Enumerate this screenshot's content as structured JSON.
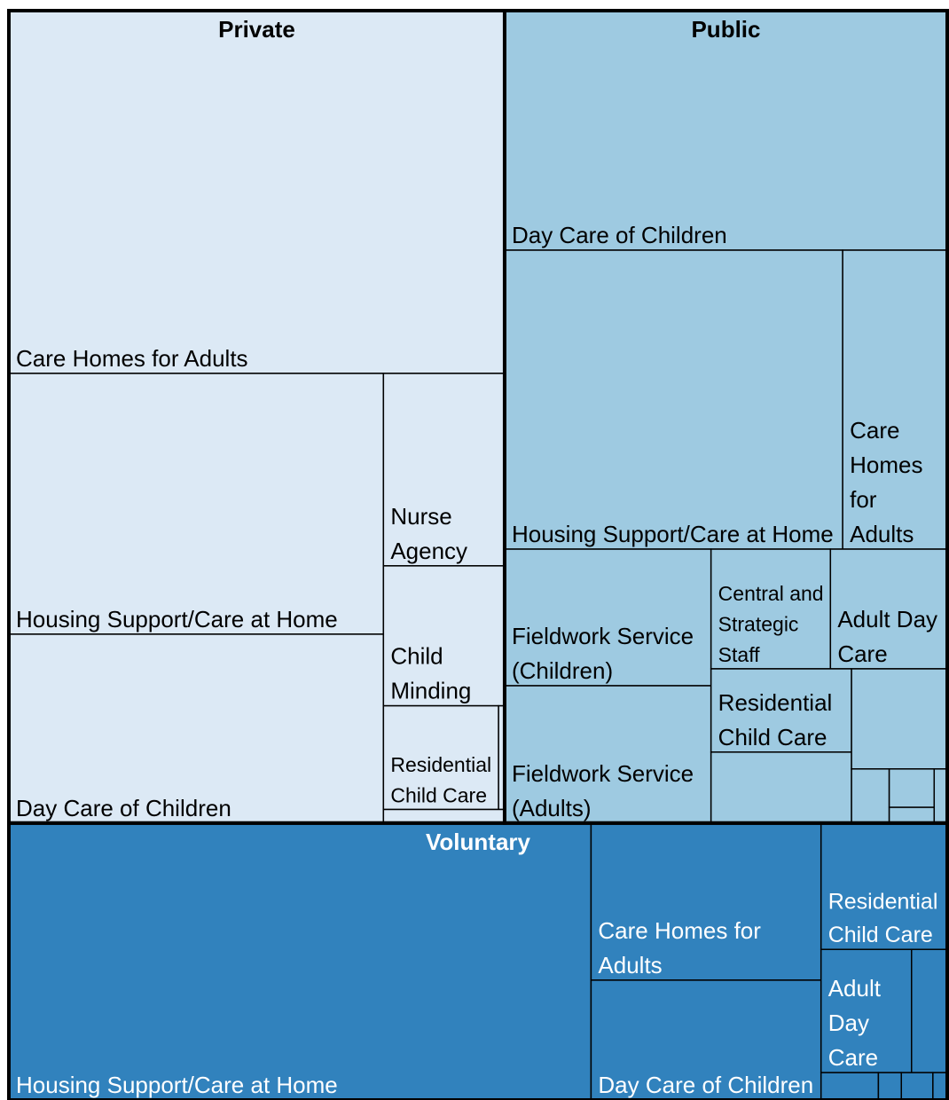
{
  "chart_data": {
    "type": "treemap",
    "groups": [
      {
        "name": "Private",
        "color": "#dce9f5",
        "categories": [
          "Care Homes for Adults",
          "Housing Support/Care at Home",
          "Day Care of Children",
          "Nurse Agency",
          "Child Minding",
          "Residential Child Care",
          null,
          null
        ],
        "values": [
          2290,
          1244,
          901,
          297,
          216,
          152,
          8,
          21
        ]
      },
      {
        "name": "Public",
        "color": "#9ecae1",
        "categories": [
          "Day Care of Children",
          "Housing Support/Care at Home",
          "Care Homes for Adults",
          "Fieldwork Service (Children)",
          "Fieldwork Service (Adults)",
          "Central and Strategic Staff",
          "Adult Day Care",
          "Residential Child Care",
          null,
          null,
          null,
          null,
          null,
          null
        ],
        "values": [
          1350,
          1287,
          398,
          359,
          361,
          182,
          178,
          149,
          127,
          122,
          26,
          22,
          9,
          9
        ]
      },
      {
        "name": "Voluntary",
        "color": "#3182bd",
        "categories": [
          "Housing Support/Care at Home",
          "Care Homes for Adults",
          "Day Care of Children",
          "Residential Child Care",
          "Adult Day Care",
          null,
          null,
          null,
          null,
          null
        ],
        "values": [
          2053,
          460,
          351,
          203,
          142,
          56,
          20,
          8,
          11,
          5
        ]
      }
    ]
  }
}
